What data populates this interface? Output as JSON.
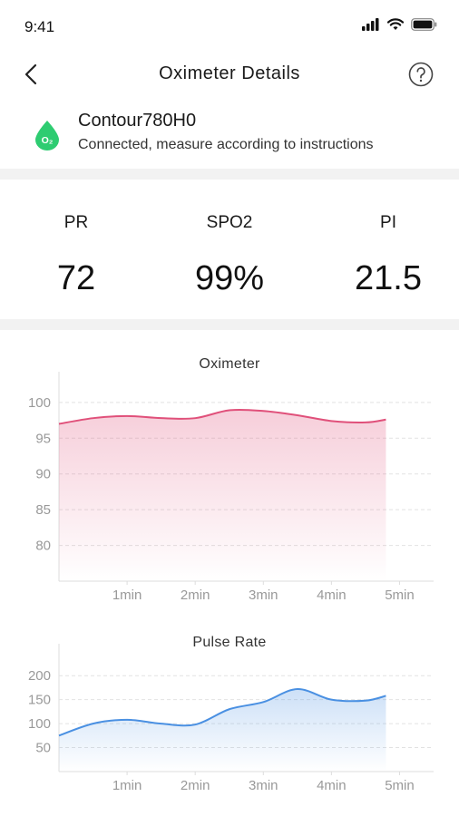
{
  "status_bar": {
    "time": "9:41"
  },
  "nav": {
    "title": "Oximeter Details"
  },
  "device": {
    "name": "Contour780H0",
    "status": "Connected, measure according to instructions",
    "icon_text": "O₂",
    "icon_color": "#2ecc71"
  },
  "metrics": [
    {
      "label": "PR",
      "value": "72"
    },
    {
      "label": "SPO2",
      "value": "99%"
    },
    {
      "label": "PI",
      "value": "21.5"
    }
  ],
  "chart_data": [
    {
      "type": "area",
      "title": "Oximeter",
      "x_ticks": [
        "1min",
        "2min",
        "3min",
        "4min",
        "5min"
      ],
      "x_tick_values": [
        1,
        2,
        3,
        4,
        5
      ],
      "y_ticks": [
        100,
        95,
        90,
        85,
        80
      ],
      "xlim": [
        0,
        5.5
      ],
      "ylim": [
        75,
        101.5
      ],
      "color": "#e0507a",
      "grid": true,
      "x": [
        0,
        0.5,
        1,
        1.5,
        2,
        2.5,
        3,
        3.5,
        4,
        4.5,
        4.8
      ],
      "values": [
        97,
        97.8,
        98.1,
        97.8,
        97.8,
        98.9,
        98.8,
        98.2,
        97.4,
        97.2,
        97.6
      ]
    },
    {
      "type": "area",
      "title": "Pulse Rate",
      "x_ticks": [
        "1min",
        "2min",
        "3min",
        "4min",
        "5min"
      ],
      "x_tick_values": [
        1,
        2,
        3,
        4,
        5
      ],
      "y_ticks": [
        200,
        150,
        100,
        50
      ],
      "xlim": [
        0,
        5.5
      ],
      "ylim": [
        0,
        225
      ],
      "color": "#4a90e2",
      "grid": true,
      "x": [
        0,
        0.5,
        1,
        1.5,
        2,
        2.5,
        3,
        3.5,
        4,
        4.5,
        4.8
      ],
      "values": [
        75,
        100,
        108,
        100,
        98,
        130,
        145,
        172,
        150,
        148,
        158
      ]
    }
  ]
}
